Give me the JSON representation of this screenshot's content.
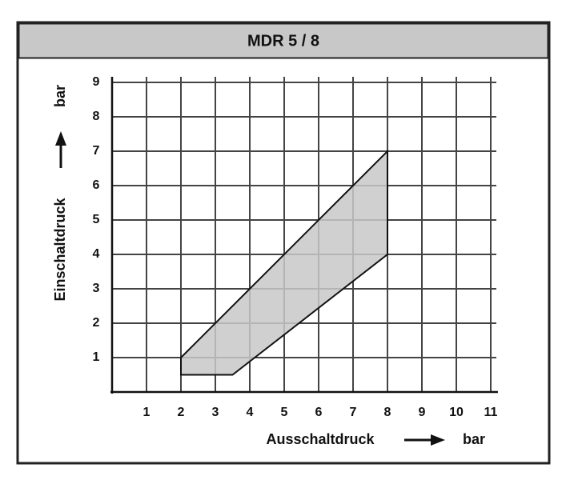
{
  "chart_data": {
    "type": "area",
    "title": "MDR 5 / 8",
    "x_label": "Ausschaltdruck",
    "x_unit": "bar",
    "y_label": "Einschaltdruck",
    "y_unit": "bar",
    "x": [
      2,
      8,
      8,
      3.5,
      2
    ],
    "values": [
      1,
      7,
      4,
      0.5,
      0.5
    ],
    "color": "#c8c8c8",
    "xlim": [
      0,
      11
    ],
    "ylim": [
      0,
      9
    ],
    "xticks": [
      1,
      2,
      3,
      4,
      5,
      6,
      7,
      8,
      9,
      10,
      11
    ],
    "yticks": [
      1,
      2,
      3,
      4,
      5,
      6,
      7,
      8,
      9
    ],
    "grid": true
  }
}
